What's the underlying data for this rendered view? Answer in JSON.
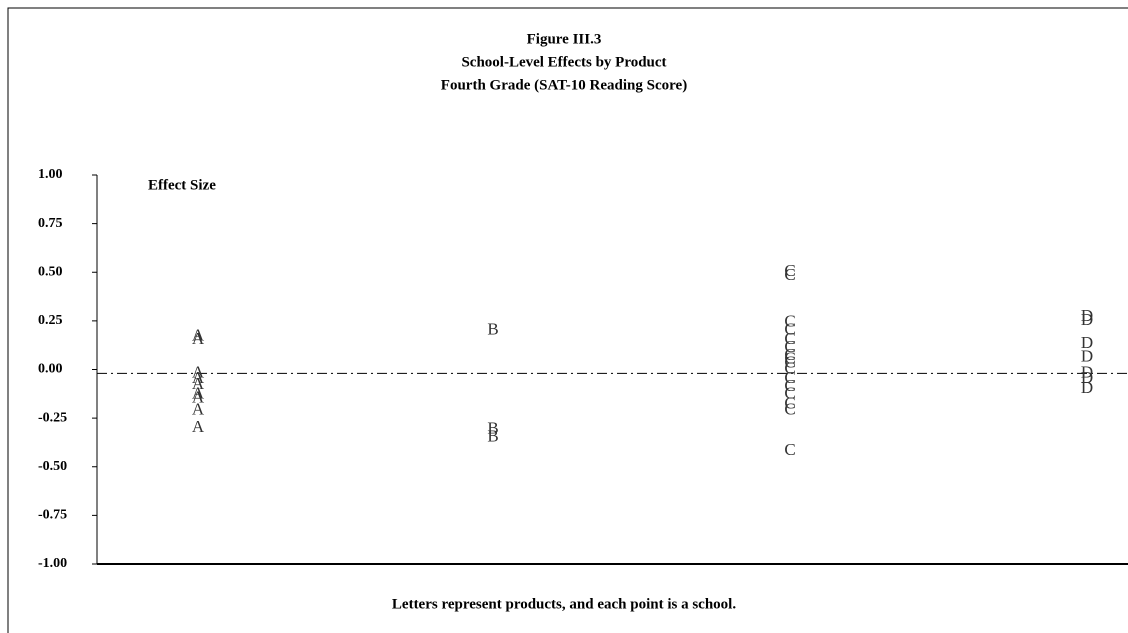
{
  "chart_data": {
    "type": "scatter",
    "title": [
      "Figure III.3",
      "School-Level Effects by Product",
      "Fourth Grade (SAT-10 Reading Score)"
    ],
    "y_label": "Effect Size",
    "note": "Letters represent products, and each point is a school.",
    "ylim": [
      -1,
      1
    ],
    "yticks": [
      {
        "value": 1,
        "label": "1.00"
      },
      {
        "value": 0.75,
        "label": "0.75"
      },
      {
        "value": 0.5,
        "label": "0.50"
      },
      {
        "value": 0.25,
        "label": "0.25"
      },
      {
        "value": 0,
        "label": "0.00"
      },
      {
        "value": -0.25,
        "label": "-0.25"
      },
      {
        "value": -0.5,
        "label": "-0.50"
      },
      {
        "value": -0.75,
        "label": "-0.75"
      },
      {
        "value": -1,
        "label": "-1.00"
      }
    ],
    "reference_line": -0.02,
    "series": [
      {
        "name": "A",
        "values": [
          0.17,
          0.15,
          -0.02,
          -0.05,
          -0.08,
          -0.13,
          -0.15,
          -0.21,
          -0.3
        ]
      },
      {
        "name": "B",
        "values": [
          0.2,
          -0.31,
          -0.35
        ]
      },
      {
        "name": "C",
        "values": [
          0.5,
          0.48,
          0.24,
          0.2,
          0.15,
          0.11,
          0.07,
          0.05,
          0.03,
          0,
          -0.05,
          -0.09,
          -0.13,
          -0.18,
          -0.21,
          -0.42
        ]
      },
      {
        "name": "D",
        "values": [
          0.27,
          0.25,
          0.13,
          0.06,
          -0.02,
          -0.05,
          -0.1
        ]
      }
    ]
  }
}
